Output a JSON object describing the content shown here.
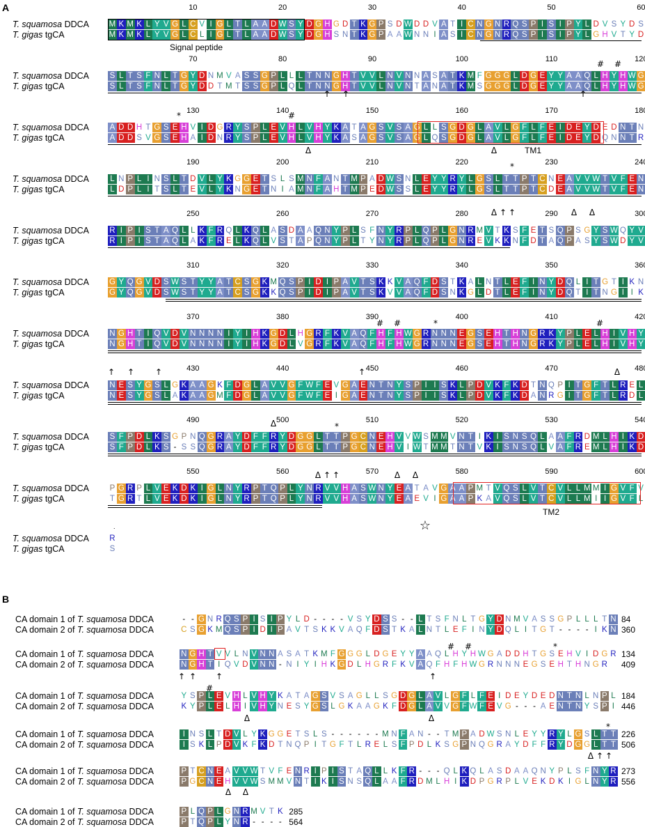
{
  "panel_a": {
    "label": "A",
    "species_1": "T. squamosa",
    "species_1_suffix": "DDCA",
    "species_2": "T. gigas",
    "species_2_suffix": "tgCA",
    "signal_peptide_label": "Signal peptide",
    "tm1_label": "TM1",
    "tm2_label": "TM2",
    "blocks": [
      {
        "start": 1,
        "numbers": [
          10,
          20,
          30,
          40,
          50,
          60
        ],
        "seq1": "MKMKLYVGLCVIGLTLAADWSYDGHGDTKGPSDWDDVATICNGNRQSPISIPYLDVSYDS",
        "seq2": "MKMKLYVGLCLIGLTLAADWSYDGHSNTKGPAAWNNIASICNGNRQSPISIPYLGHVTYDP",
        "annotations": []
      },
      {
        "start": 61,
        "numbers": [
          70,
          80,
          90,
          100,
          110,
          120
        ],
        "seq1": "SLTSFNLTGYDNMVASSGPLLLTNNGHTVVLNVNNASATKMFGGGLDGEYYAAQLHYHWG",
        "seq2": "SLTSFNLTGYDDTMTSSGPLQLTNNGHTVVLNVNTANATKMSGGGLDGEYYAAQLHYHWG",
        "annotations": [
          "#",
          "#",
          "↑",
          "↑",
          "↑"
        ]
      },
      {
        "start": 121,
        "numbers": [
          130,
          140,
          150,
          160,
          170,
          180
        ],
        "seq1": "ADDHTGSEHVIDGRYSPLEVHLVHYKATAGSVSAGLLSGDGLAVLGFLFEIDEYDEDNTN",
        "seq2": "ADDSVGSEHAIDNRYSPLEVHLVHYKASAGSVSAGLQSGDGLAVLGFLFEIDEYDQNNTR",
        "annotations": [
          "*",
          "#",
          "Δ",
          "Δ"
        ]
      },
      {
        "start": 181,
        "numbers": [
          190,
          200,
          210,
          220,
          230,
          240
        ],
        "seq1": "LNPLINSLTDVLYKGGETSLSMNFANTMPADWSNLEYYRYLGSLTTPTCNEAVVWTVFEN",
        "seq2": "LDPLITSLTEVLYKNGETNIAMNFAHTMPEDWSSLEYYRYLGSLTTPTCDEAVVWTVFEN",
        "annotations": [
          "*",
          "Δ",
          "↑",
          "↑",
          "Δ",
          "Δ"
        ]
      },
      {
        "start": 241,
        "numbers": [
          250,
          260,
          270,
          280,
          290,
          300
        ],
        "seq1": "RIPISTAQLLKFRQLKQLASDAAQNYPLSFNYRPLQPLGNRMVTKSFETSQPSGYSWQYV",
        "seq2": "RIPISTAQLAKFRELKQLVSTAPQNYPLTYNYRPLQPLGNREVKKNFDTAQPASYSWDYV",
        "annotations": []
      },
      {
        "start": 301,
        "numbers": [
          310,
          320,
          330,
          340,
          350,
          360
        ],
        "seq1": "GYQGVDSWSTYYATCSGKMQSPIDIPAVTSKKVAQFDSTKALNTLEFINYDQLITGTIKN",
        "seq2": "GYQGVDSWSTYYATCSGKKQSPIDIPAVTSKVVAQFDSNKGLDTLEFINYDQTITNGIIKN",
        "annotations": []
      },
      {
        "start": 361,
        "numbers": [
          370,
          380,
          390,
          400,
          410,
          420
        ],
        "seq1": "NGHTIQVDVNNNNIYIHKGDLHGRFKVAQFHFHWGRNNNEGSEHTHNGRKYPLELHIVHY",
        "seq2": "NGHTIQVDVNNNNIYIHKGDLVGRFKVAQFHFHWGRNNNEGSEHTHNGRKYPLELHIVHY",
        "annotations": [
          "↑",
          "↑",
          "↑",
          "↑",
          "#",
          "#",
          "*",
          "#",
          "Δ"
        ]
      },
      {
        "start": 421,
        "numbers": [
          430,
          440,
          450,
          460,
          470,
          480
        ],
        "seq1": "NESYGSLGKAAGKFDGLAVVGFWFEVGAENTNYSPIISKLPDVKFKDTNQPITGFTLREL",
        "seq2": "NESYGSLAKAAGMFDGLAVVGFWFEIGAENTNYSPIISKLPDVKFKDANRGITGFTLRDL",
        "annotations": [
          "Δ"
        ]
      },
      {
        "start": 481,
        "numbers": [
          490,
          500,
          510,
          520,
          530,
          540
        ],
        "seq1": "SFPDLKSGPNQGRAYDFFRYDGGLTTPGCNEHVVWSMMVNTIKISNSQLAAFRDMLHIKD",
        "seq2": "SFPDLKS-SSQGRAYDFFRYDGGLTTPGCNEHVIWTMMTNTVKISNSQLVAFREMLHIKD",
        "annotations": [
          "*",
          "Δ",
          "↑",
          "↑",
          "Δ",
          "Δ"
        ]
      },
      {
        "start": 541,
        "numbers": [
          550,
          560,
          570,
          580,
          590,
          600
        ],
        "seq1": "PGRPLVEKDKIGLNYRPTQPLYNRVVHASWNYEATAVGAAPMTVQSLVTCVLLMMIGVFV",
        "seq2": "TGRTLVEKDKIGLNYRPTQPLYNRVVHASWNYEAEVIGAAPKAVQSLVTCVLLMIIGVFL",
        "annotations": [
          "☆"
        ]
      },
      {
        "start": 601,
        "numbers": [],
        "seq1": "R",
        "seq2": "S",
        "annotations": []
      }
    ]
  },
  "panel_b": {
    "label": "B",
    "row_label_1": "CA domain 1 of T. squamosa DDCA",
    "row_label_2": "CA domain 2 of T. squamosa DDCA",
    "row_label_1_prefix": "CA domain 1 of ",
    "row_label_2_prefix": "CA domain 2 of ",
    "species": "T. squamosa",
    "suffix": "DDCA",
    "blocks": [
      {
        "seq1": "--GNRQSPISIPYLD----VSYDSS--LTSFNLTGYDNMVASSGPLLLTN",
        "seq2": "CSGKMQSPIDIPAVTSKKVAQFDSTKALNTLEFINYDQLITGT----IKN",
        "end1": "84",
        "end2": "360",
        "annotations": []
      },
      {
        "seq1": "NGHTVVLNVNNASATKMFGGGLDGEYYAAQLHYHWGADDHTGSEHVIDGR",
        "seq2": "NGHTIQVDVNN-NIYIHKGDLHGRFKVAQFHFHWGRNNNEGSEHTHNGR",
        "end1": "134",
        "end2": "409",
        "annotations": [
          "↑",
          "↑",
          "↑",
          "↑",
          "#",
          "#",
          "*"
        ]
      },
      {
        "seq1": "YSPLEVHLVHYKATAGSVSAGLLSGDGLAVLGFLFEIDEYDEDNTNLNPL",
        "seq2": "KYPLELHIVHYNESYGSLGKAAGKFDGLAVVGFWFEVG---AENTNYSPI",
        "end1": "184",
        "end2": "446",
        "annotations": [
          "#",
          "Δ",
          "Δ"
        ]
      },
      {
        "seq1": "INSLTDVLYKGGETSLS------MNFAN--TMPADWSNLEYYRYLGSLTT",
        "seq2": "ISKLPDVKFKDTNQPITGFTLRELSFPDLKSGPNQGRAYDFFRYDGGLTT",
        "end1": "226",
        "end2": "506",
        "annotations": [
          "*",
          "Δ",
          "↑",
          "↑"
        ]
      },
      {
        "seq1": "PTCNEAVVWTVFENRIPISTAQLLKFR---QLKQLASDAAQNYPLSFNYR",
        "seq2": "PGCNEHVVWSMMVNTIKISNSQLAAFRDMLHIKDPGRPLVEKDKIGLNYR",
        "end1": "273",
        "end2": "556",
        "annotations": [
          "Δ",
          "Δ"
        ]
      },
      {
        "seq1": "PLQPLGNRMVTK",
        "seq2": "PTQPLYNR----",
        "end1": "285",
        "end2": "564",
        "annotations": []
      }
    ]
  },
  "colors": {
    "G": "#e8a030",
    "A": "#7e8fc8",
    "V": "#1faa8f",
    "L": "#1d7a50",
    "I": "#1d7a50",
    "M": "#1d7a50",
    "F": "#1faa8f",
    "W": "#1faa8f",
    "Y": "#1faa8f",
    "P": "#8a7a6a",
    "S": "#6b7fb8",
    "T": "#6b7fb8",
    "C": "#d7a020",
    "N": "#6b7fb8",
    "Q": "#6b7fb8",
    "D": "#d82020",
    "E": "#d82020",
    "K": "#1f1fbe",
    "R": "#1f1fbe",
    "H": "#d83fd8",
    "accent_red": "#e02020"
  }
}
